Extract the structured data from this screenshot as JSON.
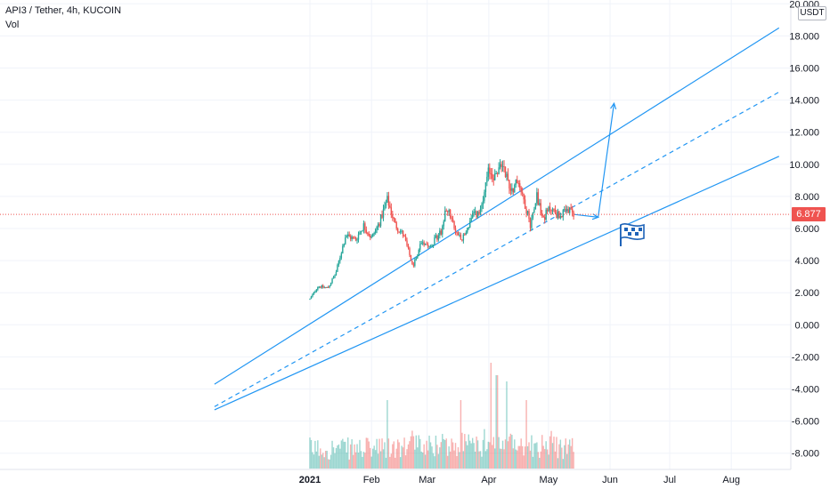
{
  "header": {
    "title": "API3 / Tether, 4h, KUCOIN",
    "indicator": "Vol"
  },
  "price_axis": {
    "currency": "USDT",
    "last_price": "6.877",
    "last_price_color": "#ef5350"
  },
  "colors": {
    "up": "#26a69a",
    "down": "#ef5350",
    "drawing": "#2196f3",
    "flag": "#1e63b8"
  },
  "chart_data": {
    "type": "candlestick",
    "title": "API3 / Tether, 4h, KUCOIN",
    "ylim": [
      -9,
      20
    ],
    "y_ticks": [
      "20.000",
      "18.000",
      "16.000",
      "14.000",
      "12.000",
      "10.000",
      "8.000",
      "6.000",
      "4.000",
      "2.000",
      "0.000",
      "-2.000",
      "-4.000",
      "-6.000",
      "-8.000"
    ],
    "x_ticks": [
      "2021",
      "Feb",
      "Mar",
      "Apr",
      "May",
      "Jun",
      "Jul",
      "Aug"
    ],
    "last_price": 6.877,
    "price_path": [
      {
        "t": "2021-01-01",
        "p": 1.6
      },
      {
        "t": "2021-01-05",
        "p": 2.4
      },
      {
        "t": "2021-01-10",
        "p": 2.3
      },
      {
        "t": "2021-01-14",
        "p": 3.2
      },
      {
        "t": "2021-01-19",
        "p": 5.6
      },
      {
        "t": "2021-01-24",
        "p": 5.3
      },
      {
        "t": "2021-01-28",
        "p": 6.2
      },
      {
        "t": "2021-02-01",
        "p": 5.4
      },
      {
        "t": "2021-02-05",
        "p": 6.4
      },
      {
        "t": "2021-02-09",
        "p": 7.8
      },
      {
        "t": "2021-02-13",
        "p": 6.2
      },
      {
        "t": "2021-02-17",
        "p": 5.6
      },
      {
        "t": "2021-02-22",
        "p": 3.6
      },
      {
        "t": "2021-02-26",
        "p": 5.2
      },
      {
        "t": "2021-03-03",
        "p": 5.0
      },
      {
        "t": "2021-03-08",
        "p": 5.8
      },
      {
        "t": "2021-03-11",
        "p": 7.4
      },
      {
        "t": "2021-03-15",
        "p": 5.8
      },
      {
        "t": "2021-03-19",
        "p": 5.4
      },
      {
        "t": "2021-03-24",
        "p": 6.8
      },
      {
        "t": "2021-03-28",
        "p": 7.0
      },
      {
        "t": "2021-04-01",
        "p": 9.6
      },
      {
        "t": "2021-04-04",
        "p": 9.2
      },
      {
        "t": "2021-04-08",
        "p": 10.1
      },
      {
        "t": "2021-04-12",
        "p": 8.4
      },
      {
        "t": "2021-04-16",
        "p": 9.0
      },
      {
        "t": "2021-04-19",
        "p": 7.6
      },
      {
        "t": "2021-04-22",
        "p": 6.2
      },
      {
        "t": "2021-04-25",
        "p": 8.2
      },
      {
        "t": "2021-04-28",
        "p": 6.6
      },
      {
        "t": "2021-05-02",
        "p": 7.3
      },
      {
        "t": "2021-05-06",
        "p": 6.8
      },
      {
        "t": "2021-05-11",
        "p": 7.1
      },
      {
        "t": "2021-05-14",
        "p": 6.877
      }
    ],
    "drawings": {
      "upper_channel": [
        {
          "t": "2020-11-14",
          "p": -3.7
        },
        {
          "t": "2021-08-25",
          "p": 18.5
        }
      ],
      "middle_dashed": [
        {
          "t": "2020-11-14",
          "p": -5.1
        },
        {
          "t": "2021-08-25",
          "p": 14.5
        }
      ],
      "lower_channel": [
        {
          "t": "2020-11-14",
          "p": -5.3
        },
        {
          "t": "2021-08-25",
          "p": 10.5
        }
      ],
      "arrow_path": [
        {
          "t": "2021-05-14",
          "p": 6.877
        },
        {
          "t": "2021-05-26",
          "p": 6.7
        },
        {
          "t": "2021-06-03",
          "p": 13.8
        }
      ]
    },
    "volume_spikes": [
      {
        "t": "2021-02-09",
        "v": 0.55
      },
      {
        "t": "2021-03-18",
        "v": 0.55
      },
      {
        "t": "2021-04-02",
        "v": 0.85
      },
      {
        "t": "2021-04-05",
        "v": 0.75
      },
      {
        "t": "2021-04-10",
        "v": 0.7
      },
      {
        "t": "2021-04-20",
        "v": 0.55
      }
    ]
  }
}
